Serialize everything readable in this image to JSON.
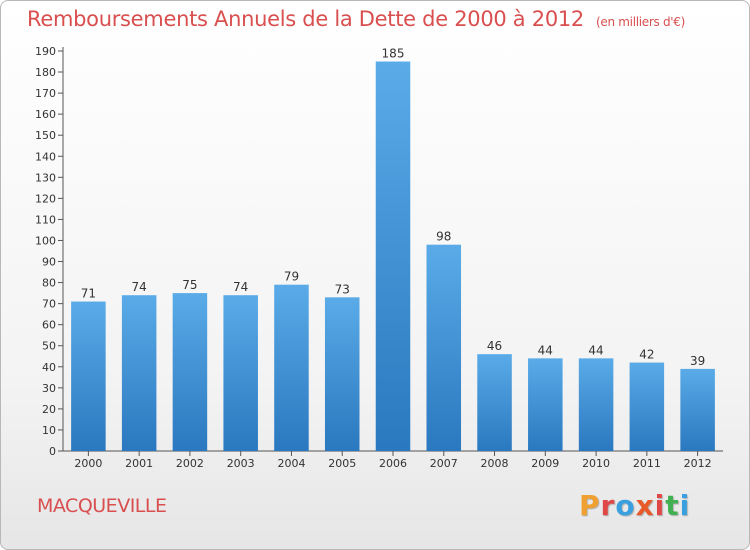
{
  "chart_data": {
    "type": "bar",
    "title": "Remboursements Annuels de la Dette de 2000 à 2012",
    "unit_note": "(en milliers d'€)",
    "categories": [
      "2000",
      "2001",
      "2002",
      "2003",
      "2004",
      "2005",
      "2006",
      "2007",
      "2008",
      "2009",
      "2010",
      "2011",
      "2012"
    ],
    "values": [
      71,
      74,
      75,
      74,
      79,
      73,
      185,
      98,
      46,
      44,
      44,
      42,
      39
    ],
    "ylim": [
      0,
      190
    ],
    "ytick_step": 10,
    "grid": false,
    "bar_color": "#3d8fd4",
    "xlabel": "",
    "ylabel": ""
  },
  "footer": {
    "city": "MACQUEVILLE",
    "logo": "Proxiti"
  },
  "colors": {
    "title": "#d94f4f",
    "logo_letters": [
      "#f0a030",
      "#e04848",
      "#3aa0e0",
      "#e85a2a",
      "#e04848",
      "#40b050",
      "#3aa0e0"
    ]
  }
}
